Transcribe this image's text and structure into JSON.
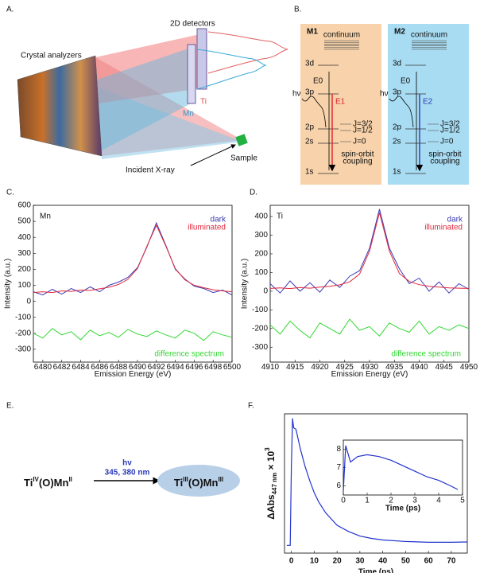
{
  "figure": {
    "panel_a": {
      "label": "A.",
      "detectors": "2D detectors",
      "analyzers": "Crystal analyzers",
      "ti": "Ti",
      "mn": "Mn",
      "incident": "Incident X-ray",
      "sample": "Sample"
    },
    "panel_b": {
      "label": "B.",
      "schemes": [
        {
          "name": "M1",
          "continuum": "continuum",
          "levels": [
            "3d",
            "3p",
            "2p",
            "2s",
            "1s"
          ],
          "edge": "E0",
          "photon": "hν",
          "transition": "E1",
          "j_labels": [
            "J=3/2",
            "J=1/2",
            "J=0"
          ],
          "coupling": [
            "spin-orbit",
            "coupling"
          ],
          "color": "#f7d2aa",
          "arrow_color": "#e0202a"
        },
        {
          "name": "M2",
          "continuum": "continuum",
          "levels": [
            "3d",
            "3p",
            "2p",
            "2s",
            "1s"
          ],
          "edge": "E0",
          "photon": "hν",
          "transition": "E2",
          "j_labels": [
            "J=3/2",
            "J=1/2",
            "J=0"
          ],
          "coupling": [
            "spin-orbit",
            "coupling"
          ],
          "color": "#a8dcf2",
          "arrow_color": "#2a3ab8"
        }
      ]
    },
    "panel_e": {
      "label": "E.",
      "reactant": [
        "Ti",
        "IV",
        "(O)Mn",
        "II"
      ],
      "photon": "hν",
      "wavelengths": "345, 380 nm",
      "product": [
        "Ti",
        "III",
        "(O)Mn",
        "III"
      ]
    }
  },
  "chart_data": [
    {
      "type": "line",
      "label": "C.",
      "annotation": "Mn",
      "xlabel": "Emission Energy (eV)",
      "ylabel": "Intensity (a.u.)",
      "x": [
        6479,
        6480,
        6481,
        6482,
        6483,
        6484,
        6485,
        6486,
        6487,
        6488,
        6489,
        6490,
        6491,
        6492,
        6493,
        6494,
        6495,
        6496,
        6497,
        6498,
        6499,
        6500
      ],
      "series": [
        {
          "name": "dark",
          "color": "#3b3bb5",
          "values": [
            60,
            40,
            75,
            45,
            80,
            55,
            90,
            60,
            100,
            120,
            150,
            210,
            340,
            490,
            350,
            200,
            140,
            95,
            80,
            55,
            70,
            40
          ]
        },
        {
          "name": "illuminated",
          "color": "#e0283c",
          "values": [
            55,
            60,
            55,
            65,
            62,
            70,
            68,
            78,
            88,
            105,
            138,
            205,
            345,
            475,
            345,
            205,
            135,
            100,
            85,
            72,
            65,
            60
          ]
        },
        {
          "name": "difference spectrum",
          "color": "#33d833",
          "values": [
            -200,
            -230,
            -170,
            -210,
            -190,
            -240,
            -180,
            -215,
            -195,
            -225,
            -175,
            -205,
            -220,
            -185,
            -210,
            -230,
            -180,
            -200,
            -245,
            -190,
            -210,
            -225
          ]
        }
      ],
      "xlim": [
        6479,
        6500
      ],
      "xticks": [
        6480,
        6482,
        6484,
        6486,
        6488,
        6490,
        6492,
        6494,
        6496,
        6498,
        6500
      ],
      "ylim": [
        -380,
        600
      ],
      "yticks": [
        -300,
        -200,
        -100,
        0,
        100,
        200,
        300,
        400,
        500,
        600
      ],
      "legend": "upper right",
      "grid": false
    },
    {
      "type": "line",
      "label": "D.",
      "annotation": "Ti",
      "xlabel": "Emission Energy (eV)",
      "ylabel": "Intensity (a.u.)",
      "x": [
        4910,
        4912,
        4914,
        4916,
        4918,
        4920,
        4922,
        4924,
        4926,
        4928,
        4930,
        4932,
        4934,
        4936,
        4938,
        4940,
        4942,
        4944,
        4946,
        4948,
        4950
      ],
      "series": [
        {
          "name": "dark",
          "color": "#3b3bb5",
          "values": [
            40,
            -10,
            55,
            0,
            45,
            -5,
            60,
            20,
            80,
            110,
            230,
            440,
            230,
            120,
            40,
            70,
            0,
            50,
            -10,
            40,
            10
          ]
        },
        {
          "name": "illuminated",
          "color": "#e0283c",
          "values": [
            15,
            18,
            14,
            20,
            16,
            22,
            26,
            34,
            50,
            92,
            215,
            420,
            215,
            95,
            52,
            35,
            26,
            22,
            18,
            16,
            15
          ]
        },
        {
          "name": "difference spectrum",
          "color": "#33d833",
          "values": [
            -180,
            -230,
            -160,
            -210,
            -250,
            -170,
            -200,
            -230,
            -150,
            -210,
            -190,
            -240,
            -170,
            -200,
            -220,
            -160,
            -230,
            -190,
            -210,
            -180,
            -200
          ]
        }
      ],
      "xlim": [
        4910,
        4950
      ],
      "xticks": [
        4910,
        4915,
        4920,
        4925,
        4930,
        4935,
        4940,
        4945,
        4950
      ],
      "ylim": [
        -380,
        460
      ],
      "yticks": [
        -300,
        -200,
        -100,
        0,
        100,
        200,
        300,
        400
      ],
      "legend": "upper right",
      "grid": false
    },
    {
      "type": "line",
      "label": "F.",
      "xlabel": "Time (ps)",
      "ylabel": [
        "ΔAbs",
        "447 nm",
        " × 10",
        "3"
      ],
      "x": [
        -2,
        -0.5,
        0,
        0.5,
        1,
        2,
        4,
        6,
        8,
        10,
        12,
        15,
        20,
        25,
        30,
        35,
        40,
        50,
        60,
        70,
        77
      ],
      "series": [
        {
          "color": "#2233cc",
          "values": [
            0,
            0,
            5,
            8.2,
            7.6,
            7.5,
            6.2,
            5.1,
            4.2,
            3.4,
            2.8,
            2.1,
            1.3,
            0.9,
            0.6,
            0.45,
            0.35,
            0.25,
            0.2,
            0.2,
            0.22
          ]
        }
      ],
      "xlim": [
        -3,
        77
      ],
      "xticks": [
        0,
        10,
        20,
        30,
        40,
        50,
        60,
        70
      ],
      "ylim": [
        -0.5,
        8.5
      ],
      "grid": false
    },
    {
      "type": "line",
      "xlabel": "Time (ps)",
      "x": [
        0,
        0.1,
        0.3,
        0.6,
        1,
        1.5,
        2,
        2.5,
        3,
        3.5,
        4,
        4.5,
        4.8
      ],
      "series": [
        {
          "color": "#2233cc",
          "values": [
            5.7,
            8.2,
            7.3,
            7.6,
            7.7,
            7.6,
            7.4,
            7.1,
            6.8,
            6.5,
            6.3,
            6.0,
            5.8
          ]
        }
      ],
      "xlim": [
        0,
        5
      ],
      "xticks": [
        0,
        1,
        2,
        3,
        4,
        5
      ],
      "ylim": [
        5.5,
        8.5
      ],
      "yticks": [
        6,
        7,
        8
      ],
      "grid": false
    }
  ]
}
